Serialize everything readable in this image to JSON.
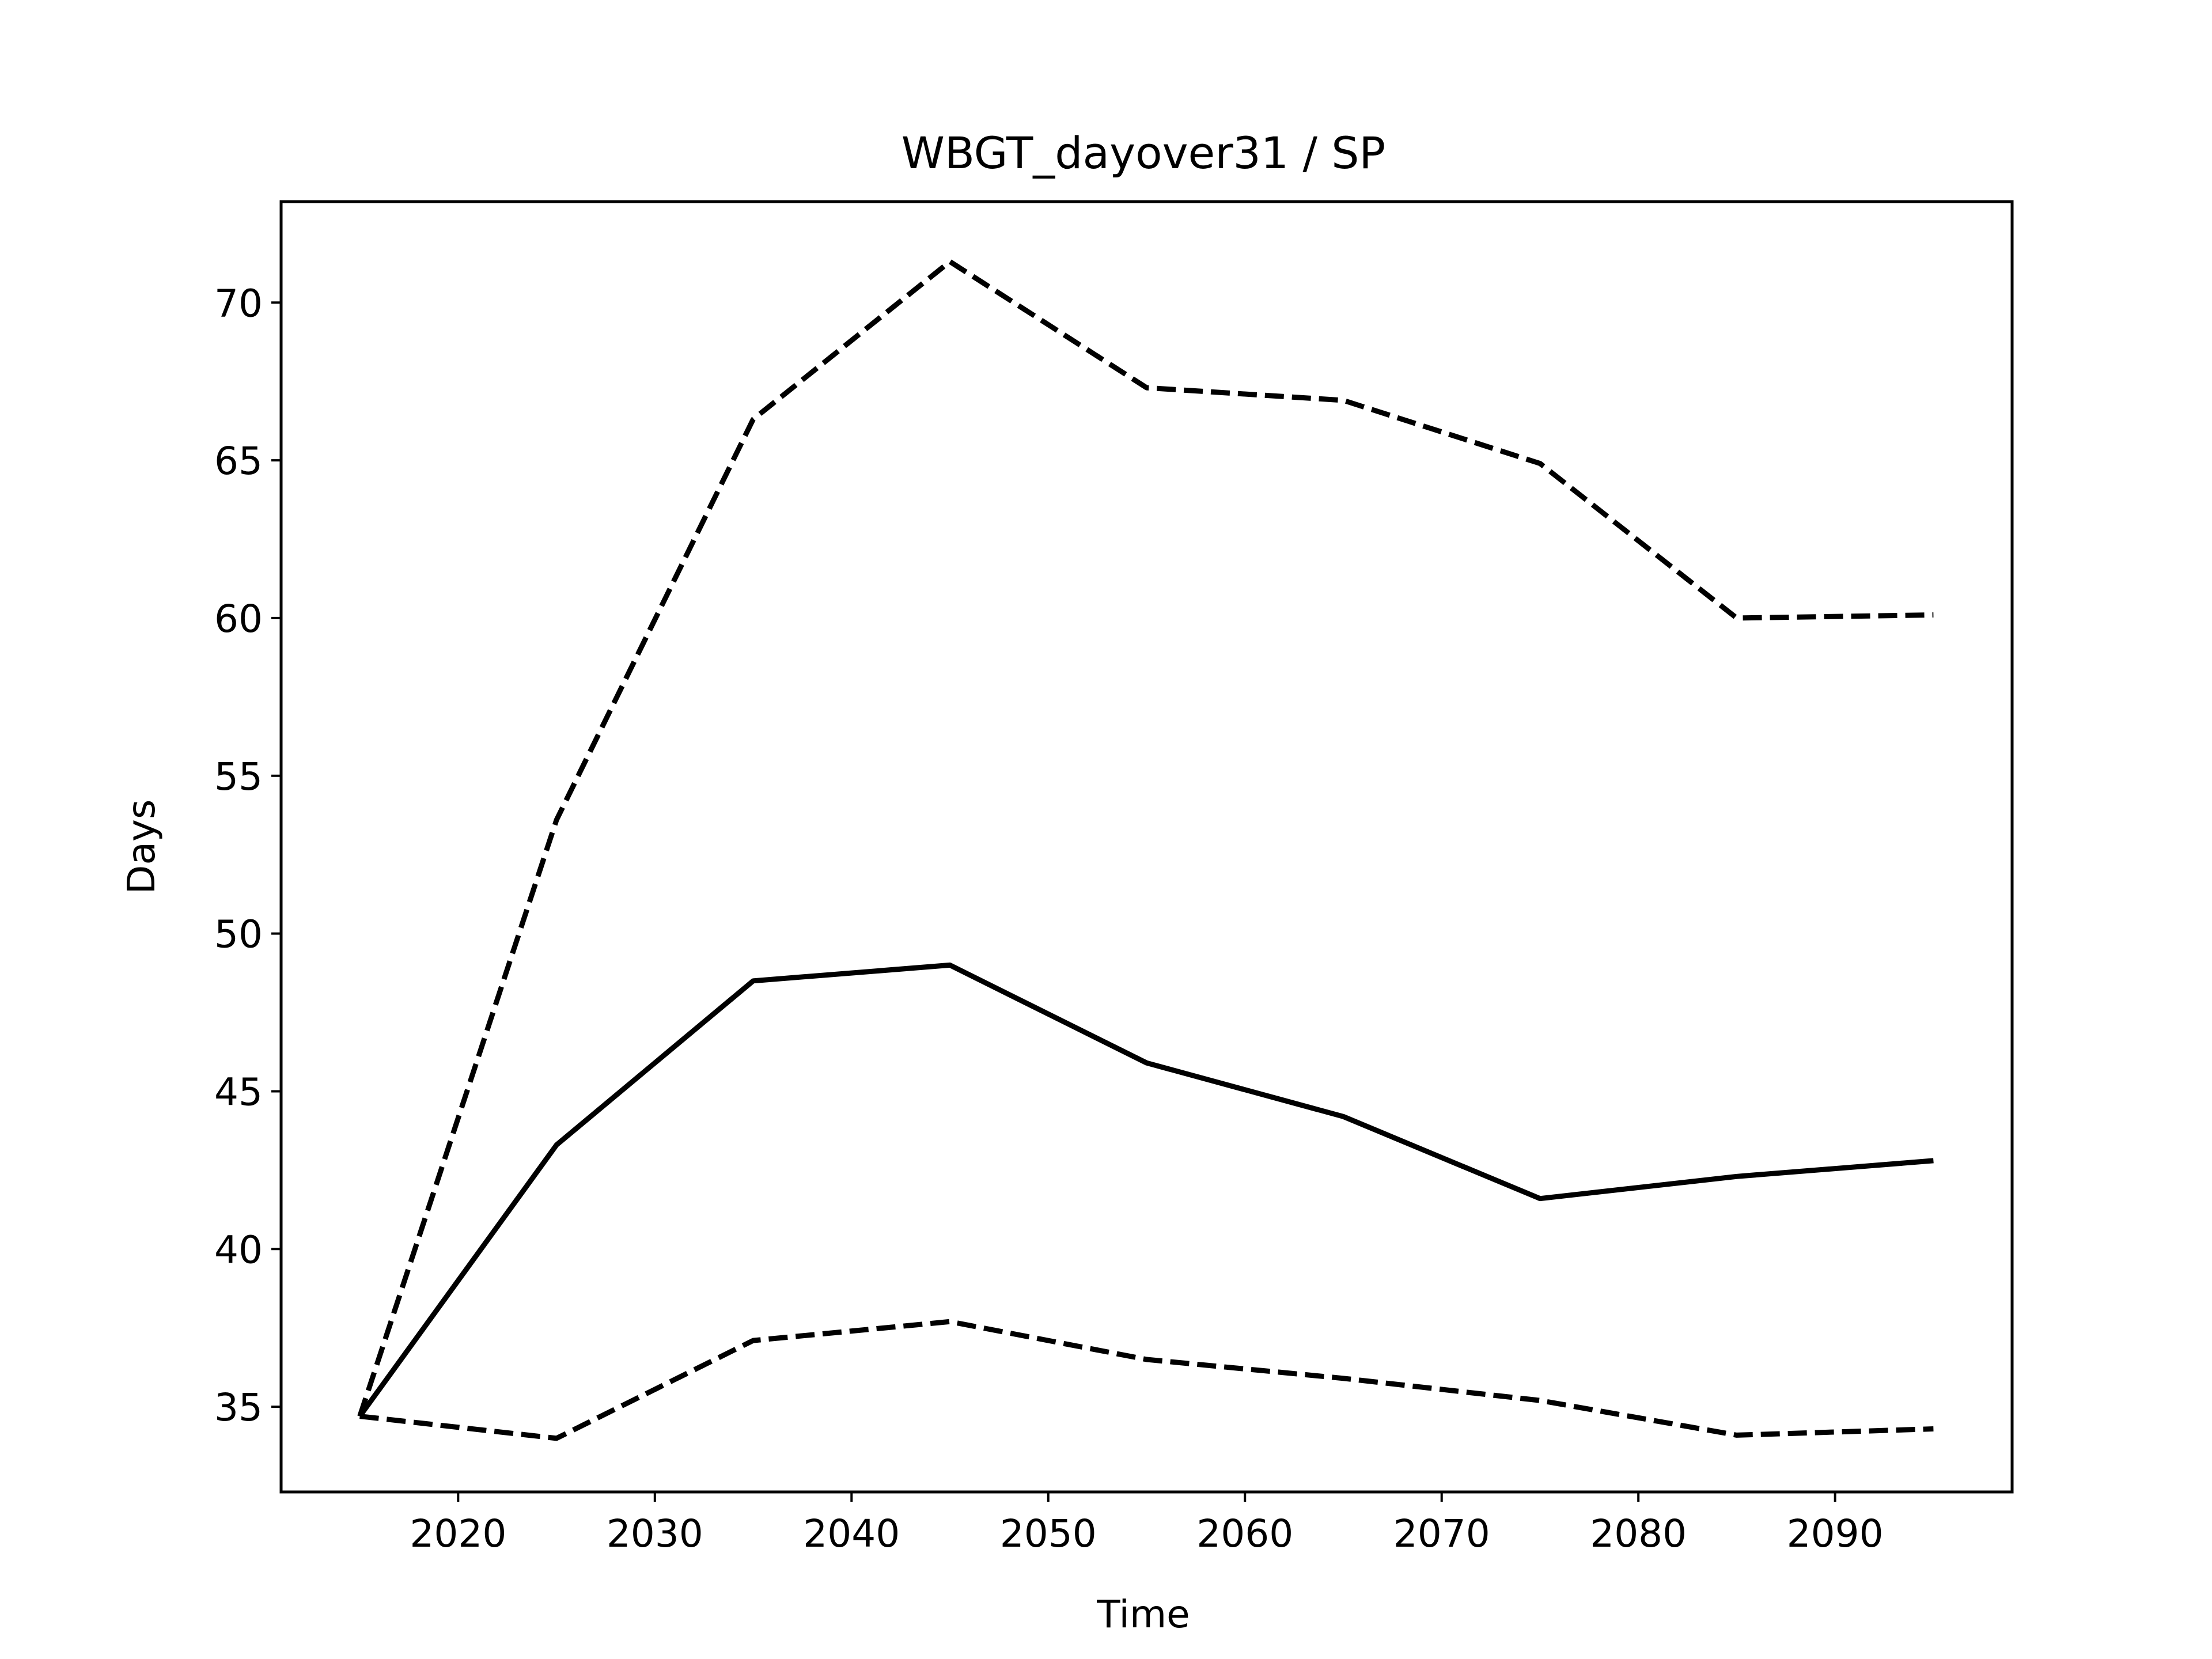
{
  "chart_data": {
    "type": "line",
    "title": "WBGT_dayover31 / SP",
    "xlabel": "Time",
    "ylabel": "Days",
    "x": [
      2015,
      2025,
      2035,
      2045,
      2055,
      2065,
      2075,
      2085,
      2095
    ],
    "series": [
      {
        "style": "solid",
        "values": [
          34.7,
          43.3,
          48.5,
          49.0,
          45.9,
          44.2,
          41.6,
          42.3,
          42.8
        ]
      },
      {
        "style": "dashed",
        "values": [
          34.7,
          53.6,
          66.3,
          71.3,
          67.3,
          66.9,
          64.9,
          60.0,
          60.1
        ]
      },
      {
        "style": "dashed",
        "values": [
          34.7,
          34.0,
          37.1,
          37.7,
          36.5,
          35.9,
          35.2,
          34.1,
          34.3
        ]
      }
    ],
    "xlim": [
      2011,
      2099
    ],
    "ylim": [
      32.3,
      73.2
    ],
    "x_ticks": [
      "2020",
      "2030",
      "2040",
      "2050",
      "2060",
      "2070",
      "2080",
      "2090"
    ],
    "y_ticks": [
      "35",
      "40",
      "45",
      "50",
      "55",
      "60",
      "65",
      "70"
    ],
    "line_color": "#000000",
    "grid": false,
    "legend": "none"
  }
}
